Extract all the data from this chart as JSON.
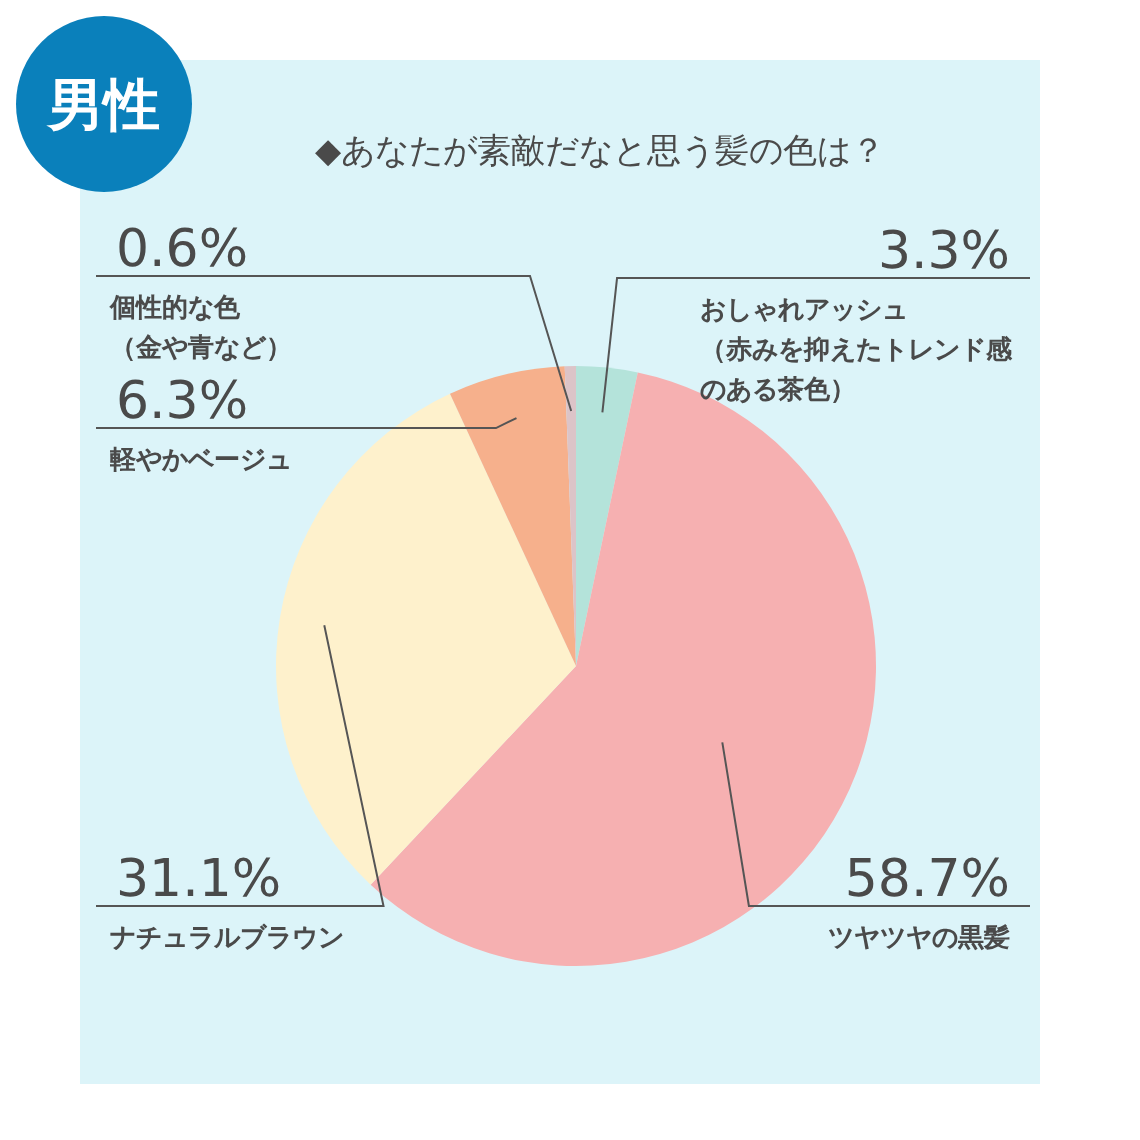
{
  "chart_data": {
    "type": "pie",
    "title": "◆あなたが素敵だなと思う髪の色は？",
    "subtitle": "男性",
    "categories": [
      "おしゃれアッシュ（赤みを抑えたトレンド感のある茶色）",
      "ツヤツヤの黒髪",
      "ナチュラルブラウン",
      "軽やかベージュ",
      "個性的な色（金や青など）"
    ],
    "values": [
      3.3,
      58.7,
      31.1,
      6.3,
      0.6
    ],
    "value_labels": [
      "3.3%",
      "58.7%",
      "31.1%",
      "6.3%",
      "0.6%"
    ],
    "colors": [
      "#b4e3da",
      "#f6b0b1",
      "#fef1cc",
      "#f6b08c",
      "#dcc4c8"
    ]
  }
}
